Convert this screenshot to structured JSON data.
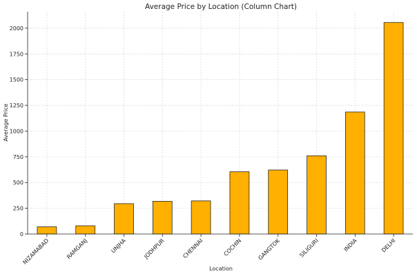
{
  "chart_data": {
    "type": "bar",
    "title": "Average Price by Location (Column Chart)",
    "xlabel": "Location",
    "ylabel": "Average Price",
    "categories": [
      "NIZAMABAD",
      "RAMGANJ",
      "UNJHA",
      "JODHPUR",
      "CHENNAI",
      "COCHIN",
      "GANGTOK",
      "SILIGURI",
      "INDIA",
      "DELHI"
    ],
    "values": [
      70,
      80,
      295,
      318,
      322,
      605,
      622,
      760,
      1185,
      2055
    ],
    "ylim": [
      0,
      2160
    ],
    "yticks": [
      0,
      250,
      500,
      750,
      1000,
      1250,
      1500,
      1750,
      2000
    ],
    "grid": true,
    "bar_color": "#ffb000"
  }
}
